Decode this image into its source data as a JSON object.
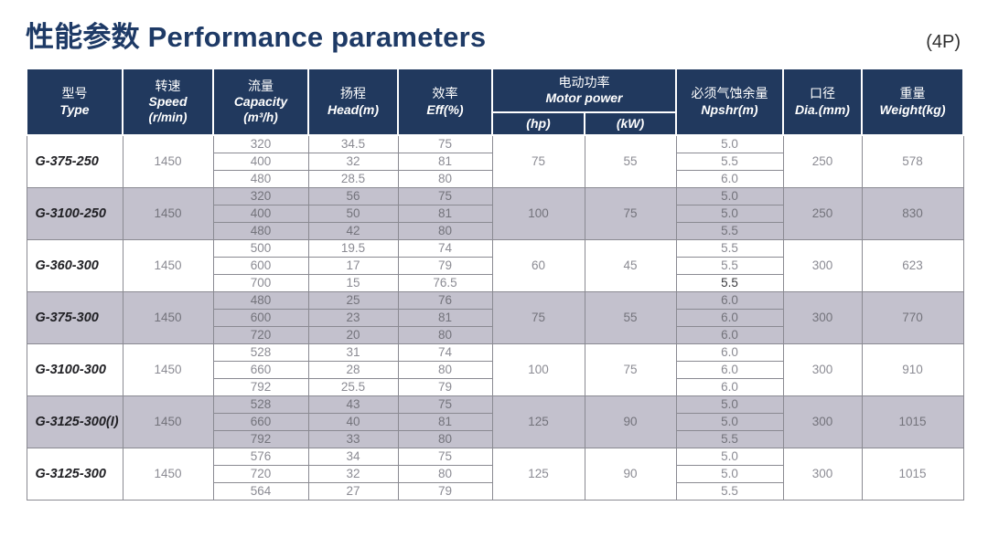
{
  "page": {
    "title": "性能参数 Performance parameters",
    "pole_label": "(4P)"
  },
  "table": {
    "headers": {
      "type": {
        "zh": "型号",
        "en": "Type"
      },
      "speed": {
        "zh": "转速",
        "en": "Speed",
        "unit": "(r/min)"
      },
      "capacity": {
        "zh": "流量",
        "en": "Capacity",
        "unit": "(m³/h)"
      },
      "head": {
        "zh": "扬程",
        "en": "Head(m)"
      },
      "eff": {
        "zh": "效率",
        "en": "Eff(%)"
      },
      "motor_power": {
        "zh": "电动功率",
        "en": "Motor power",
        "sub_hp": "(hp)",
        "sub_kw": "(kW)"
      },
      "npshr": {
        "zh": "必须气蚀余量",
        "en": "Npshr(m)"
      },
      "dia": {
        "zh": "口径",
        "en": "Dia.(mm)"
      },
      "weight": {
        "zh": "重量",
        "en": "Weight(kg)"
      }
    },
    "rows": [
      {
        "type": "G-375-250",
        "speed": "1450",
        "hp": "75",
        "kw": "55",
        "dia": "250",
        "weight": "578",
        "shaded": false,
        "sub": [
          {
            "capacity": "320",
            "head": "34.5",
            "eff": "75",
            "npshr": "5.0"
          },
          {
            "capacity": "400",
            "head": "32",
            "eff": "81",
            "npshr": "5.5"
          },
          {
            "capacity": "480",
            "head": "28.5",
            "eff": "80",
            "npshr": "6.0"
          }
        ]
      },
      {
        "type": "G-3100-250",
        "speed": "1450",
        "hp": "100",
        "kw": "75",
        "dia": "250",
        "weight": "830",
        "shaded": true,
        "sub": [
          {
            "capacity": "320",
            "head": "56",
            "eff": "75",
            "npshr": "5.0"
          },
          {
            "capacity": "400",
            "head": "50",
            "eff": "81",
            "npshr": "5.0"
          },
          {
            "capacity": "480",
            "head": "42",
            "eff": "80",
            "npshr": "5.5"
          }
        ]
      },
      {
        "type": "G-360-300",
        "speed": "1450",
        "hp": "60",
        "kw": "45",
        "dia": "300",
        "weight": "623",
        "shaded": false,
        "sub": [
          {
            "capacity": "500",
            "head": "19.5",
            "eff": "74",
            "npshr": "5.5"
          },
          {
            "capacity": "600",
            "head": "17",
            "eff": "79",
            "npshr": "5.5"
          },
          {
            "capacity": "700",
            "head": "15",
            "eff": "76.5",
            "npshr": "5.5",
            "emphasis": true
          }
        ]
      },
      {
        "type": "G-375-300",
        "speed": "1450",
        "hp": "75",
        "kw": "55",
        "dia": "300",
        "weight": "770",
        "shaded": true,
        "sub": [
          {
            "capacity": "480",
            "head": "25",
            "eff": "76",
            "npshr": "6.0"
          },
          {
            "capacity": "600",
            "head": "23",
            "eff": "81",
            "npshr": "6.0"
          },
          {
            "capacity": "720",
            "head": "20",
            "eff": "80",
            "npshr": "6.0",
            "emphasis": true
          }
        ]
      },
      {
        "type": "G-3100-300",
        "speed": "1450",
        "hp": "100",
        "kw": "75",
        "dia": "300",
        "weight": "910",
        "shaded": false,
        "sub": [
          {
            "capacity": "528",
            "head": "31",
            "eff": "74",
            "npshr": "6.0"
          },
          {
            "capacity": "660",
            "head": "28",
            "eff": "80",
            "npshr": "6.0"
          },
          {
            "capacity": "792",
            "head": "25.5",
            "eff": "79",
            "npshr": "6.0"
          }
        ]
      },
      {
        "type": "G-3125-300(I)",
        "speed": "1450",
        "hp": "125",
        "kw": "90",
        "dia": "300",
        "weight": "1015",
        "shaded": true,
        "sub": [
          {
            "capacity": "528",
            "head": "43",
            "eff": "75",
            "npshr": "5.0"
          },
          {
            "capacity": "660",
            "head": "40",
            "eff": "81",
            "npshr": "5.0"
          },
          {
            "capacity": "792",
            "head": "33",
            "eff": "80",
            "npshr": "5.5"
          }
        ]
      },
      {
        "type": "G-3125-300",
        "speed": "1450",
        "hp": "125",
        "kw": "90",
        "dia": "300",
        "weight": "1015",
        "shaded": false,
        "sub": [
          {
            "capacity": "576",
            "head": "34",
            "eff": "75",
            "npshr": "5.0"
          },
          {
            "capacity": "720",
            "head": "32",
            "eff": "80",
            "npshr": "5.0"
          },
          {
            "capacity": "564",
            "head": "27",
            "eff": "79",
            "npshr": "5.5"
          }
        ]
      }
    ]
  }
}
